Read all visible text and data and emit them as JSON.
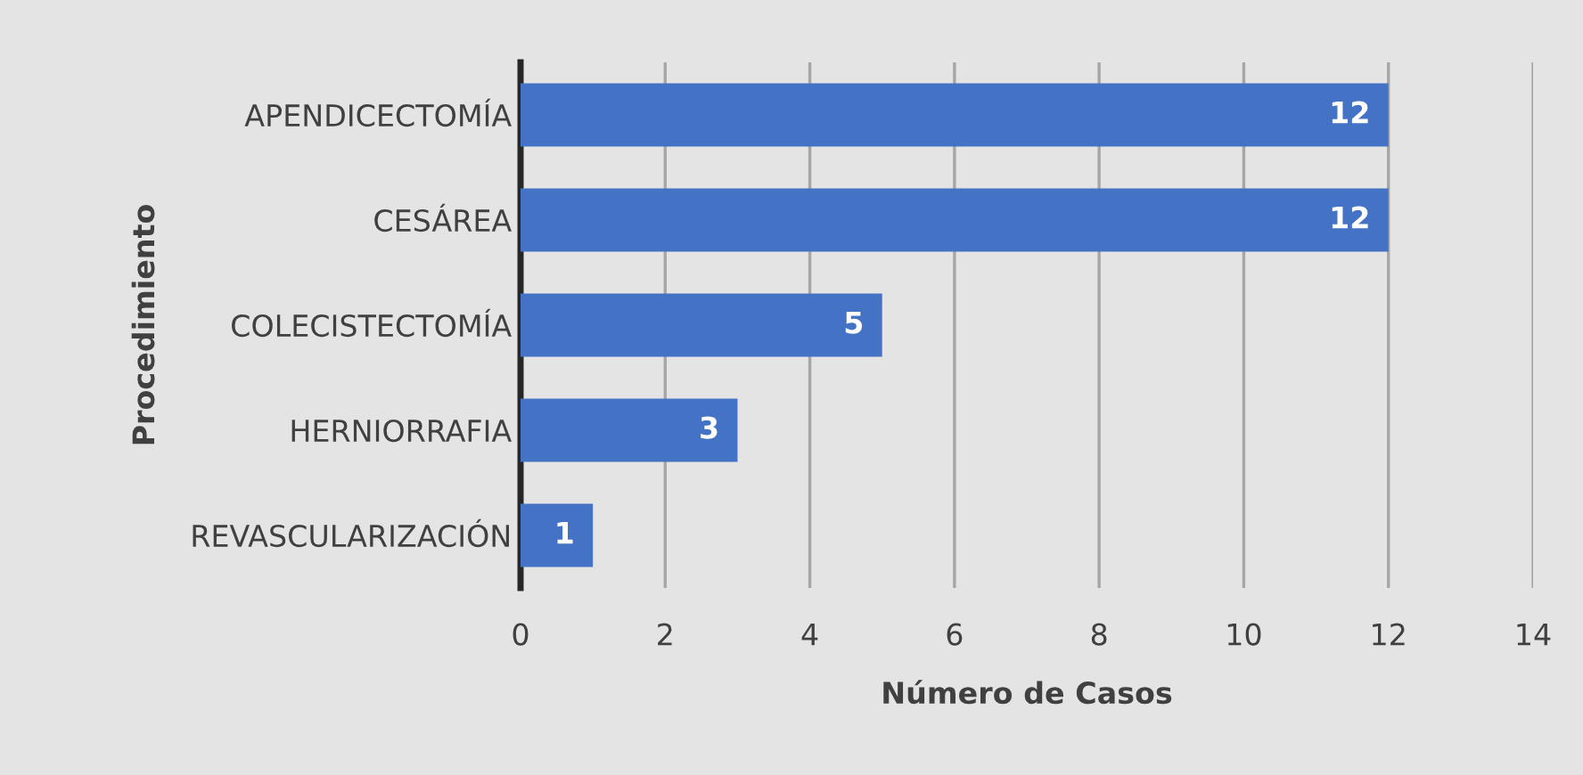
{
  "chart_data": {
    "type": "bar",
    "orientation": "horizontal",
    "xlabel": "Número de Casos",
    "ylabel": "Procedimiento",
    "categories": [
      "APENDICECTOMÍA",
      "CESÁREA",
      "COLECISTECTOMÍA",
      "HERNIORRAFIA",
      "REVASCULARIZACIÓN"
    ],
    "values": [
      12,
      12,
      5,
      3,
      1
    ],
    "color": "#4472c4",
    "data_labels": true,
    "xlim": [
      0,
      14
    ],
    "xticks": [
      0,
      2,
      4,
      6,
      8,
      10,
      12,
      14
    ],
    "grid": "x"
  }
}
